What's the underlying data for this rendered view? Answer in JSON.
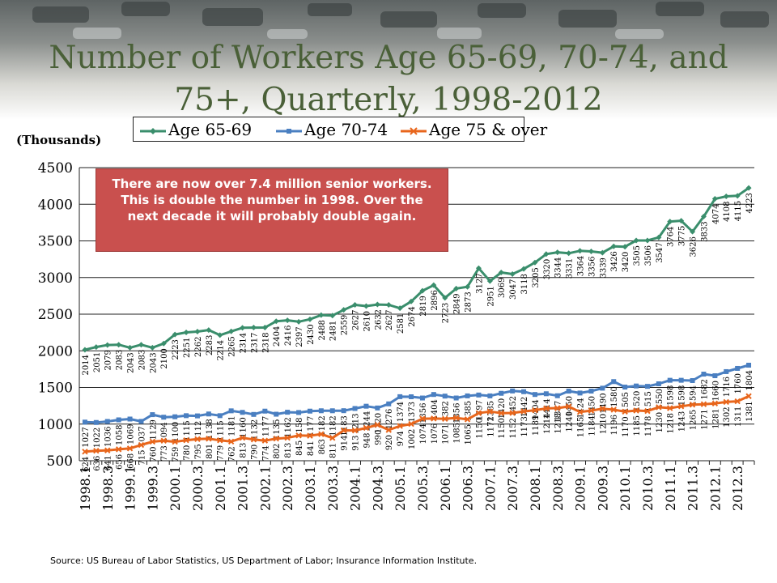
{
  "title": "Number of Workers Age 65-69, 70-74, and 75+, Quarterly, 1998-2012",
  "units_label": "(Thousands)",
  "callout_text": "There are now over 7.4 million senior workers. This is double the number in 1998. Over the next decade it will probably double again.",
  "source_text": "Source: US Bureau of Labor Statistics, US Department of Labor; Insurance Information Institute.",
  "colors": {
    "title": "#4a6038",
    "age65": "#3a8e6c",
    "age70": "#4a7fc1",
    "age75": "#e8661c",
    "callout": "#c9504e",
    "banner": "#6f7474"
  },
  "icons": {
    "banner": "highway-photo"
  },
  "chart_data": {
    "type": "line",
    "title": "Number of Workers Age 65-69, 70-74, and 75+, Quarterly, 1998-2012",
    "ylabel": "(Thousands)",
    "xlabel": "",
    "ylim": [
      500,
      4500
    ],
    "yticks": [
      500,
      1000,
      1500,
      2000,
      2500,
      3000,
      3500,
      4000,
      4500
    ],
    "grid": "horizontal",
    "legend_position": "top",
    "categories": [
      "1998.1",
      "1998.2",
      "1998.3",
      "1998.4",
      "1999.1",
      "1999.2",
      "1999.3",
      "1999.4",
      "2000.1",
      "2000.2",
      "2000.3",
      "2000.4",
      "2001.1",
      "2001.2",
      "2001.3",
      "2001.4",
      "2002.1",
      "2002.2",
      "2002.3",
      "2002.4",
      "2003.1",
      "2003.2",
      "2003.3",
      "2003.4",
      "2004.1",
      "2004.2",
      "2004.3",
      "2004.4",
      "2005.1",
      "2005.2",
      "2005.3",
      "2005.4",
      "2006.1",
      "2006.2",
      "2006.3",
      "2006.4",
      "2007.1",
      "2007.2",
      "2007.3",
      "2007.4",
      "2008.1",
      "2008.2",
      "2008.3",
      "2008.4",
      "2009.1",
      "2009.2",
      "2009.3",
      "2009.4",
      "2010.1",
      "2010.2",
      "2010.3",
      "2010.4",
      "2011.1",
      "2011.2",
      "2011.3",
      "2011.4",
      "2012.1",
      "2012.2",
      "2012.3",
      "2012.4"
    ],
    "xtick_labels": [
      "1998.1",
      "1998.3",
      "1999.1",
      "1999.3",
      "2000.1",
      "2000.3",
      "2001.1",
      "2001.3",
      "2002.1",
      "2002.3",
      "2003.1",
      "2003.3",
      "2004.1",
      "2004.3",
      "2005.1",
      "2005.3",
      "2006.1",
      "2006.3",
      "2007.1",
      "2007.3",
      "2008.1",
      "2008.3",
      "2009.1",
      "2009.3",
      "2010.1",
      "2010.3",
      "2011.1",
      "2011.3",
      "2012.1",
      "2012.3"
    ],
    "series": [
      {
        "name": "Age 65-69",
        "color": "#3a8e6c",
        "values": [
          2014,
          2051,
          2079,
          2083,
          2043,
          2083,
          2043,
          2100,
          2223,
          2251,
          2262,
          2283,
          2214,
          2265,
          2314,
          2317,
          2318,
          2404,
          2416,
          2397,
          2430,
          2488,
          2481,
          2559,
          2627,
          2610,
          2632,
          2627,
          2581,
          2674,
          2819,
          2896,
          2723,
          2849,
          2873,
          3127,
          2951,
          3069,
          3047,
          3118,
          3205,
          3320,
          3344,
          3331,
          3364,
          3356,
          3339,
          3426,
          3420,
          3505,
          3506,
          3547,
          3764,
          3775,
          3626,
          3833,
          4074,
          4108,
          4115,
          4223
        ]
      },
      {
        "name": "Age 70-74",
        "color": "#4a7fc1",
        "values": [
          1027,
          1022,
          1036,
          1058,
          1069,
          1037,
          1129,
          1094,
          1100,
          1115,
          1112,
          1138,
          1115,
          1181,
          1160,
          1132,
          1177,
          1135,
          1162,
          1158,
          1177,
          1182,
          1182,
          1183,
          1213,
          1244,
          1220,
          1276,
          1374,
          1373,
          1356,
          1404,
          1382,
          1356,
          1385,
          1397,
          1385,
          1420,
          1452,
          1442,
          1404,
          1414,
          1387,
          1450,
          1424,
          1450,
          1490,
          1580,
          1505,
          1520,
          1515,
          1550,
          1598,
          1598,
          1594,
          1682,
          1660,
          1716,
          1760,
          1804
        ]
      },
      {
        "name": "Age 75 & over",
        "color": "#e8661c",
        "values": [
          624,
          636,
          641,
          656,
          668,
          715,
          760,
          773,
          759,
          780,
          795,
          801,
          779,
          762,
          813,
          790,
          774,
          802,
          813,
          845,
          841,
          863,
          811,
          914,
          913,
          948,
          990,
          920,
          974,
          1002,
          1074,
          1076,
          1071,
          1085,
          1065,
          1150,
          1172,
          1150,
          1152,
          1173,
          1189,
          1214,
          1218,
          1240,
          1165,
          1184,
          1210,
          1196,
          1170,
          1185,
          1178,
          1230,
          1218,
          1243,
          1265,
          1271,
          1281,
          1302,
          1311,
          1381
        ]
      }
    ]
  }
}
